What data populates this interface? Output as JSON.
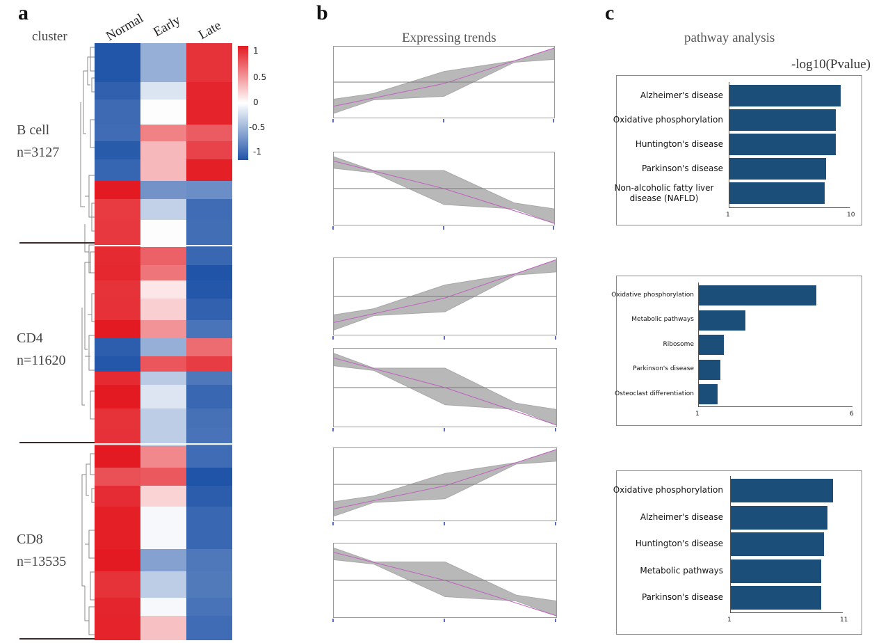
{
  "panels": {
    "a": "a",
    "b": "b",
    "c": "c"
  },
  "panel_a": {
    "cluster_header": "cluster",
    "columns": [
      "Normal",
      "Early",
      "Late"
    ],
    "clusters": [
      {
        "name": "B cell",
        "n": "n=3127"
      },
      {
        "name": "CD4",
        "n": "n=11620"
      },
      {
        "name": "CD8",
        "n": "n=13535"
      }
    ],
    "colorbar_ticks": [
      "1",
      "0.5",
      "0",
      "-0.5",
      "-1"
    ],
    "colors": {
      "high": "#e31a22",
      "mid": "#ffffff",
      "low": "#2054a8"
    }
  },
  "panel_b": {
    "title": "Expressing trends"
  },
  "panel_c": {
    "title": "pathway analysis",
    "axis_title": "-log10(Pvalue)",
    "bar_color": "#1b4f79",
    "charts": [
      {
        "labels": [
          "Alzheimer's disease",
          "Oxidative phosphorylation",
          "Huntington's disease",
          "Parkinson's disease",
          "Non-alcoholic fatty liver disease (NAFLD)"
        ],
        "values": [
          9.3,
          8.9,
          8.9,
          8.2,
          8.1
        ],
        "axis": [
          "1",
          "10"
        ],
        "xlim": [
          1,
          10
        ]
      },
      {
        "labels": [
          "Oxidative phosphorylation",
          "Metabolic pathways",
          "Ribosome",
          "Parkinson's disease",
          "Osteoclast differentiation"
        ],
        "values": [
          4.8,
          2.5,
          1.8,
          1.7,
          1.6
        ],
        "axis": [
          "1",
          "6"
        ],
        "xlim": [
          1,
          6
        ]
      },
      {
        "labels": [
          "Oxidative phosphorylation",
          "Alzheimer's disease",
          "Huntington's disease",
          "Metabolic pathways",
          "Parkinson's disease"
        ],
        "values": [
          10.1,
          9.6,
          9.3,
          9.0,
          9.0
        ],
        "axis": [
          "1",
          "11"
        ],
        "xlim": [
          1,
          11
        ]
      }
    ]
  }
}
